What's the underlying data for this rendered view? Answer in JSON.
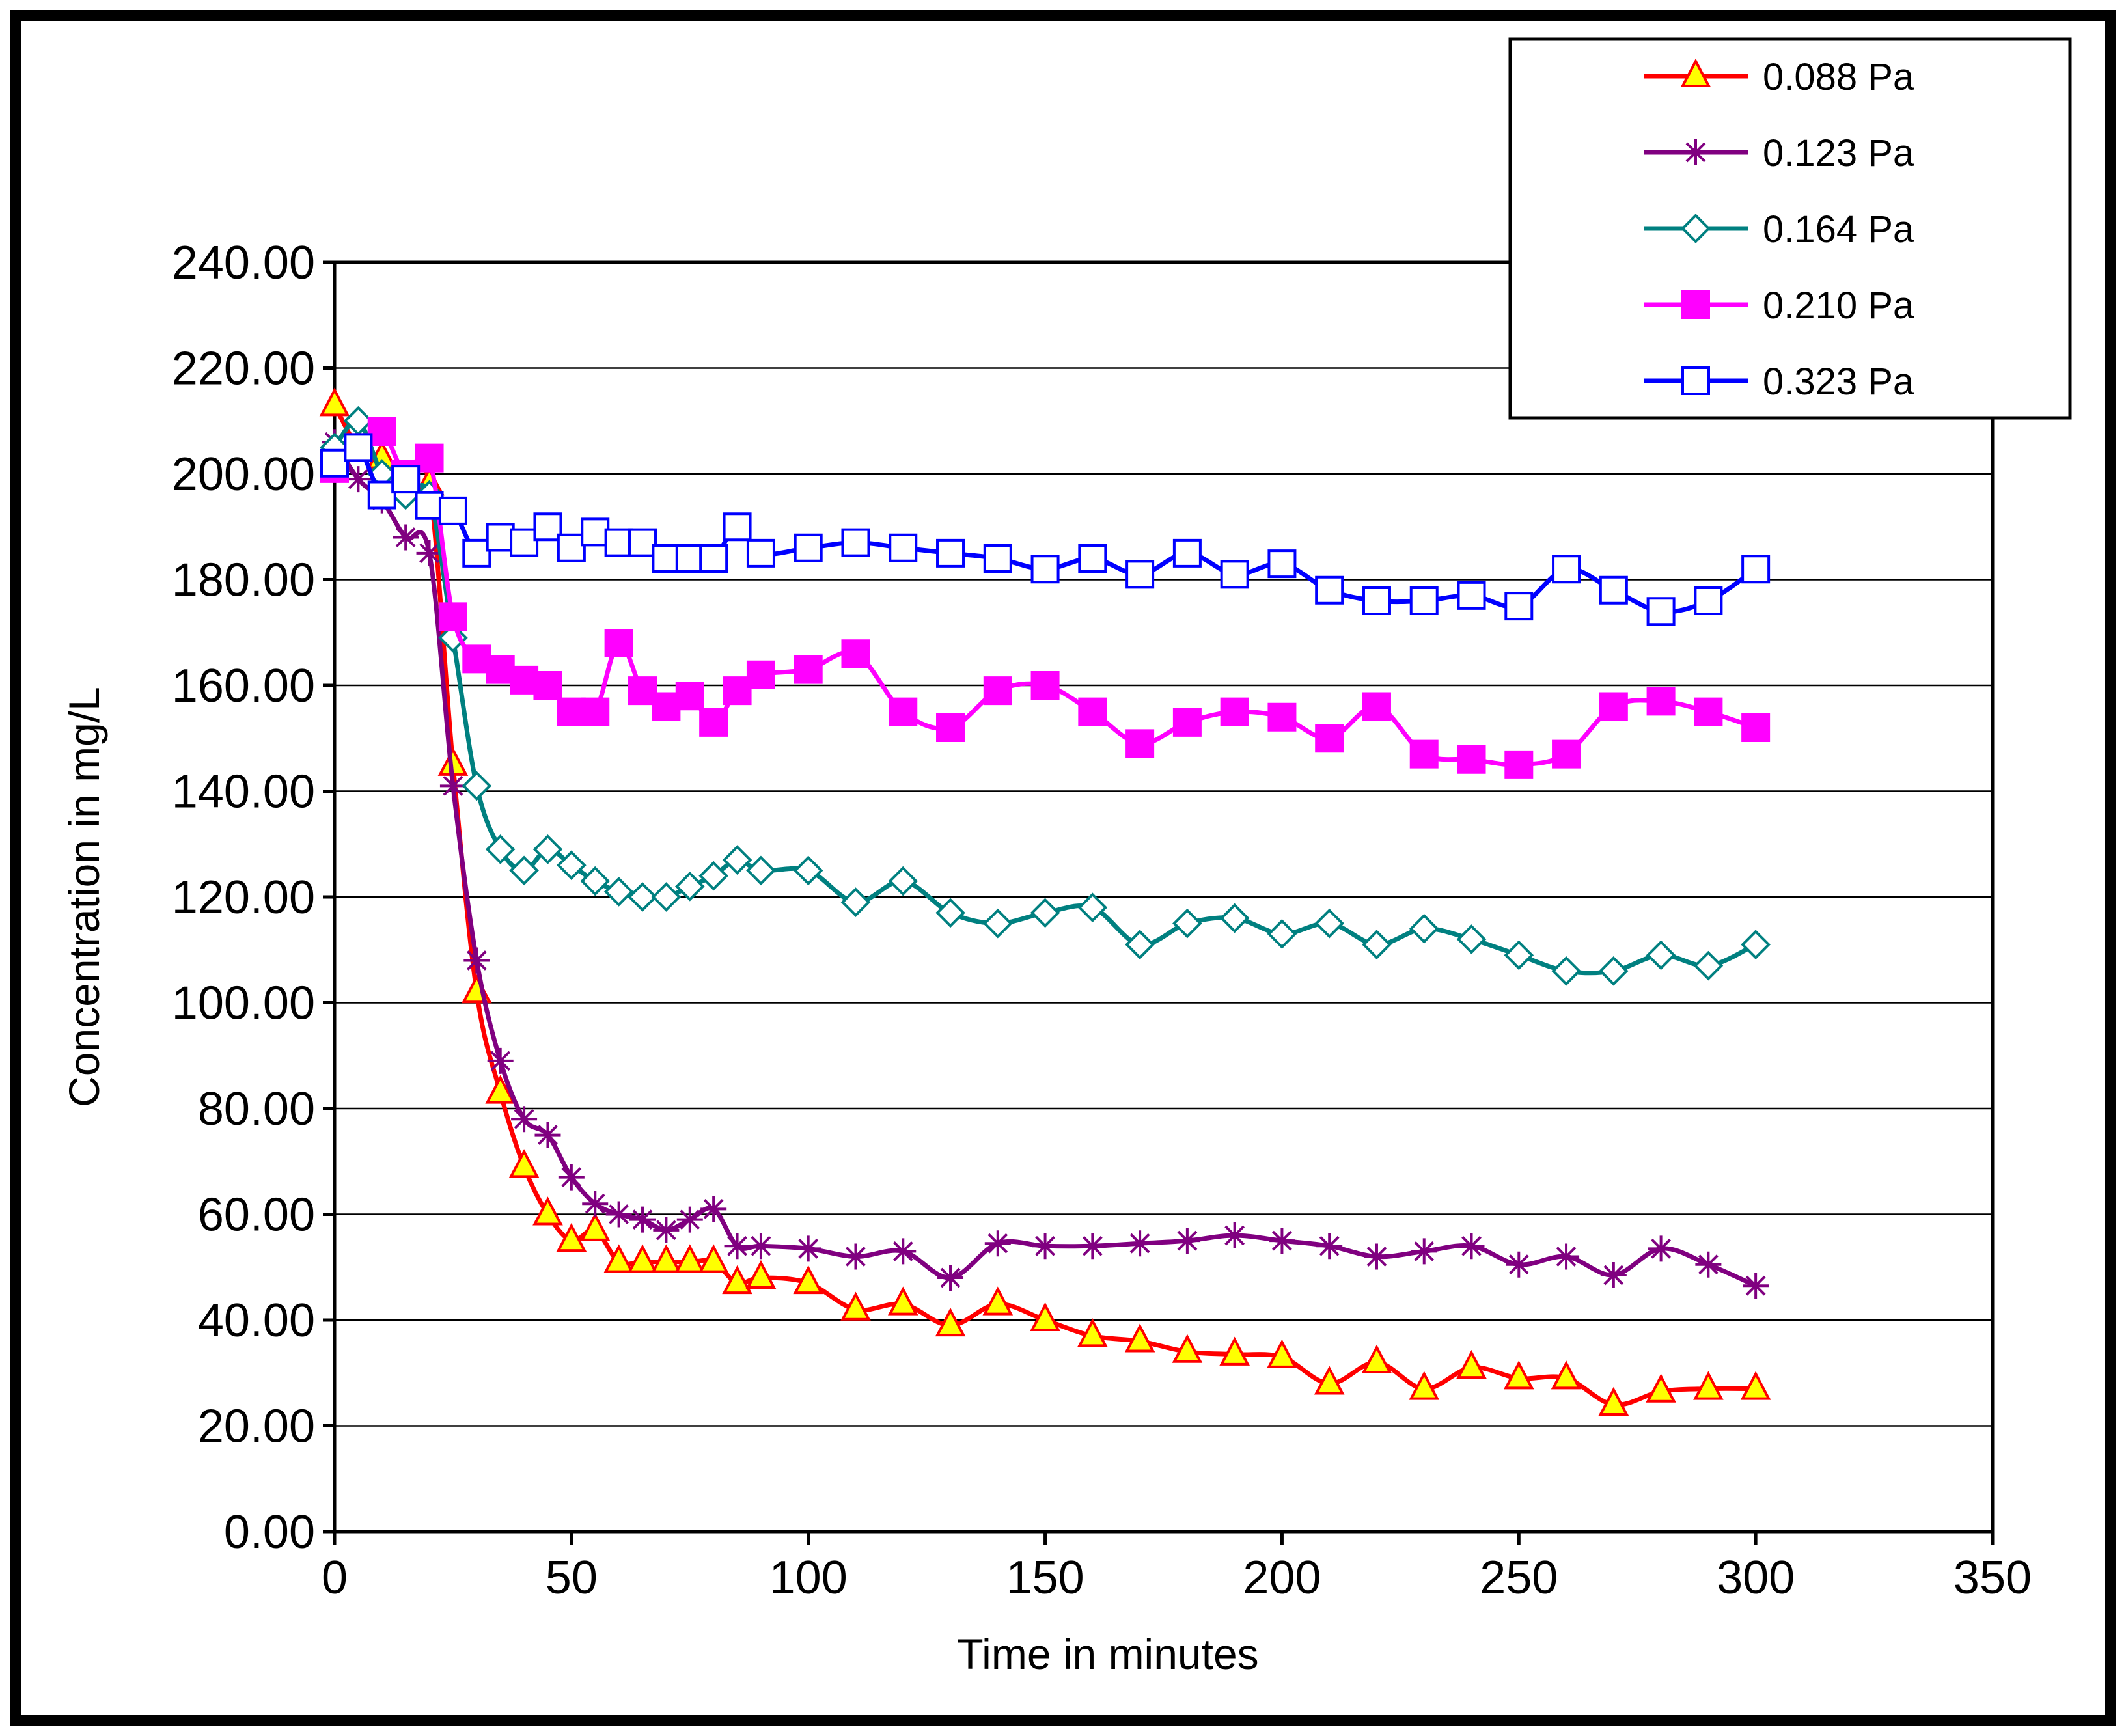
{
  "chart_data": {
    "type": "line",
    "title": "",
    "xlabel": "Time in minutes",
    "ylabel": "Concentration in mg/L",
    "xlim": [
      0,
      350
    ],
    "ylim": [
      0,
      240
    ],
    "xticks": [
      0,
      50,
      100,
      150,
      200,
      250,
      300,
      350
    ],
    "yticks": [
      0,
      20,
      40,
      60,
      80,
      100,
      120,
      140,
      160,
      180,
      200,
      220,
      240
    ],
    "xtick_labels": [
      "0",
      "50",
      "100",
      "150",
      "200",
      "250",
      "300",
      "350"
    ],
    "ytick_labels": [
      "0.00",
      "20.00",
      "40.00",
      "60.00",
      "80.00",
      "100.00",
      "120.00",
      "140.00",
      "160.00",
      "180.00",
      "200.00",
      "220.00",
      "240.00"
    ],
    "grid": "horizontal",
    "legend_position": "top-right",
    "x": [
      0,
      5,
      10,
      15,
      20,
      25,
      30,
      35,
      40,
      45,
      50,
      55,
      60,
      65,
      70,
      75,
      80,
      85,
      90,
      100,
      110,
      120,
      130,
      140,
      150,
      160,
      170,
      180,
      190,
      200,
      210,
      220,
      230,
      240,
      250,
      260,
      270,
      280,
      290,
      300
    ],
    "series": [
      {
        "name": "0.088 Pa",
        "color": "#ff0000",
        "marker": "triangle",
        "marker_fill": "#ffff00",
        "marker_stroke": "#ff0000",
        "values": [
          213,
          205,
          203,
          199,
          198,
          145,
          102,
          83,
          69,
          60,
          55,
          57,
          51,
          51,
          51,
          51,
          51,
          47,
          48,
          47,
          42,
          43,
          39,
          43,
          40,
          37,
          36,
          34,
          33.5,
          33,
          28,
          32,
          27,
          31,
          29,
          29,
          24,
          26.5,
          27,
          27
        ]
      },
      {
        "name": "0.123 Pa",
        "color": "#800080",
        "marker": "star",
        "marker_fill": "none",
        "marker_stroke": "#800080",
        "values": [
          206,
          199,
          195,
          188,
          185,
          141,
          108,
          89,
          78,
          75,
          67,
          62,
          60,
          59,
          57,
          59,
          61,
          54,
          54,
          53.5,
          52,
          53,
          48,
          54.5,
          54,
          54,
          54.5,
          55,
          56,
          55,
          54,
          52,
          53,
          54,
          50.5,
          52,
          48.5,
          53.5,
          50.5,
          46.5
        ]
      },
      {
        "name": "0.164 Pa",
        "color": "#008080",
        "marker": "diamond",
        "marker_fill": "#ffffff",
        "marker_stroke": "#008080",
        "values": [
          205,
          210,
          200,
          196,
          196,
          169,
          141,
          129,
          125,
          129,
          126,
          123,
          121,
          120,
          120,
          122,
          124,
          127,
          125,
          125,
          119,
          123,
          117,
          115,
          117,
          118,
          111,
          115,
          116,
          113,
          115,
          111,
          114,
          112,
          109,
          106,
          106,
          109,
          107,
          111
        ]
      },
      {
        "name": "0.210 Pa",
        "color": "#ff00ff",
        "marker": "square",
        "marker_fill": "#ff00ff",
        "marker_stroke": "#ff00ff",
        "values": [
          201,
          205,
          208,
          200,
          203,
          173,
          165,
          163,
          161,
          160,
          155,
          155,
          168,
          159,
          156,
          158,
          153,
          159,
          162,
          163,
          166,
          155,
          152,
          159,
          160,
          155,
          149,
          153,
          155,
          154,
          150,
          156,
          147,
          146,
          145,
          147,
          156,
          157,
          155,
          152
        ]
      },
      {
        "name": "0.323 Pa",
        "color": "#0000ff",
        "marker": "square-open",
        "marker_fill": "#ffffff",
        "marker_stroke": "#0000ff",
        "values": [
          202,
          205,
          196,
          199,
          194,
          193,
          185,
          188,
          187,
          190,
          186,
          189,
          187,
          187,
          184,
          184,
          184,
          190,
          185,
          186,
          187,
          186,
          185,
          184,
          182,
          184,
          181,
          185,
          181,
          183,
          178,
          176,
          176,
          177,
          175,
          182,
          178,
          174,
          176,
          182
        ]
      }
    ]
  }
}
